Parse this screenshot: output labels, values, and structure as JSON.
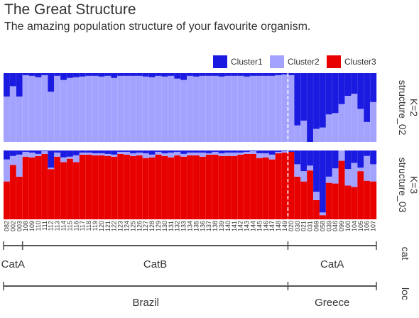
{
  "chart_data": {
    "type": "bar",
    "title": "The Great Structure",
    "subtitle": "The amazing population structure of your favourite organism.",
    "legend": {
      "placement": "top-right",
      "items": [
        {
          "name": "Cluster1",
          "color": "#1a1ae0"
        },
        {
          "name": "Cluster2",
          "color": "#a3a3ff"
        },
        {
          "name": "Cluster3",
          "color": "#e80000"
        }
      ]
    },
    "categories": [
      "082",
      "002",
      "003",
      "108",
      "109",
      "110",
      "111",
      "112",
      "113",
      "114",
      "115",
      "116",
      "117",
      "118",
      "119",
      "120",
      "121",
      "122",
      "123",
      "124",
      "125",
      "126",
      "127",
      "128",
      "129",
      "130",
      "131",
      "132",
      "133",
      "134",
      "135",
      "136",
      "137",
      "138",
      "139",
      "140",
      "141",
      "142",
      "143",
      "144",
      "145",
      "146",
      "147",
      "148",
      "149",
      "020",
      "030",
      "021",
      "031",
      "069",
      "058",
      "039",
      "046",
      "099",
      "100",
      "104",
      "105",
      "106",
      "107"
    ],
    "group_split_after": "149",
    "panels": [
      {
        "name": "structure_02",
        "k_label": "K=2",
        "series_order": [
          "Cluster2",
          "Cluster1"
        ],
        "values": {
          "Cluster1": [
            0.34,
            0.19,
            0.34,
            0.03,
            0.04,
            0.06,
            0.03,
            0.27,
            0.04,
            0.1,
            0.07,
            0.06,
            0.05,
            0.04,
            0.04,
            0.05,
            0.04,
            0.07,
            0.04,
            0.04,
            0.04,
            0.04,
            0.05,
            0.06,
            0.04,
            0.05,
            0.04,
            0.08,
            0.1,
            0.04,
            0.05,
            0.04,
            0.04,
            0.04,
            0.05,
            0.04,
            0.04,
            0.04,
            0.05,
            0.04,
            0.04,
            0.04,
            0.04,
            0.03,
            0.02,
            0.03,
            0.76,
            0.69,
            1.0,
            0.81,
            0.79,
            0.6,
            0.58,
            0.45,
            0.33,
            0.3,
            0.52,
            0.71,
            0.42
          ],
          "Cluster2": [
            0.66,
            0.81,
            0.66,
            0.97,
            0.96,
            0.94,
            0.97,
            0.73,
            0.96,
            0.9,
            0.93,
            0.94,
            0.95,
            0.96,
            0.96,
            0.95,
            0.96,
            0.93,
            0.96,
            0.96,
            0.96,
            0.96,
            0.95,
            0.94,
            0.96,
            0.95,
            0.96,
            0.92,
            0.9,
            0.96,
            0.95,
            0.96,
            0.96,
            0.96,
            0.95,
            0.96,
            0.96,
            0.96,
            0.95,
            0.96,
            0.96,
            0.96,
            0.96,
            0.97,
            0.98,
            0.97,
            0.24,
            0.31,
            0.0,
            0.19,
            0.21,
            0.4,
            0.42,
            0.55,
            0.67,
            0.7,
            0.48,
            0.29,
            0.58
          ]
        }
      },
      {
        "name": "structure_03",
        "k_label": "K=3",
        "series_order": [
          "Cluster3",
          "Cluster2",
          "Cluster1"
        ],
        "values": {
          "Cluster1": [
            0.13,
            0.08,
            0.06,
            0.02,
            0.03,
            0.05,
            0.01,
            0.25,
            0.03,
            0.1,
            0.09,
            0.07,
            0.03,
            0.03,
            0.04,
            0.04,
            0.05,
            0.06,
            0.02,
            0.02,
            0.04,
            0.03,
            0.04,
            0.06,
            0.02,
            0.04,
            0.03,
            0.02,
            0.05,
            0.03,
            0.03,
            0.03,
            0.04,
            0.02,
            0.04,
            0.03,
            0.03,
            0.03,
            0.02,
            0.01,
            0.04,
            0.04,
            0.06,
            0.02,
            0.01,
            0.02,
            0.2,
            0.3,
            0.22,
            0.6,
            0.9,
            0.38,
            0.26,
            0.0,
            0.27,
            0.18,
            0.25,
            0.08,
            0.2
          ],
          "Cluster2": [
            0.32,
            0.13,
            0.32,
            0.07,
            0.07,
            0.03,
            0.04,
            0.02,
            0.06,
            0.07,
            0.03,
            0.1,
            0.03,
            0.03,
            0.03,
            0.03,
            0.03,
            0.03,
            0.03,
            0.04,
            0.04,
            0.04,
            0.07,
            0.04,
            0.04,
            0.04,
            0.07,
            0.05,
            0.04,
            0.04,
            0.04,
            0.06,
            0.02,
            0.04,
            0.04,
            0.05,
            0.05,
            0.03,
            0.03,
            0.04,
            0.07,
            0.06,
            0.07,
            0.02,
            0.02,
            0.0,
            0.18,
            0.15,
            0.07,
            0.12,
            0.04,
            0.09,
            0.22,
            0.15,
            0.24,
            0.35,
            0.05,
            0.36,
            0.25
          ],
          "Cluster3": [
            0.55,
            0.79,
            0.62,
            0.91,
            0.9,
            0.92,
            0.95,
            0.73,
            0.91,
            0.83,
            0.88,
            0.83,
            0.94,
            0.94,
            0.93,
            0.93,
            0.92,
            0.91,
            0.95,
            0.94,
            0.92,
            0.93,
            0.89,
            0.9,
            0.94,
            0.92,
            0.9,
            0.93,
            0.91,
            0.93,
            0.93,
            0.91,
            0.94,
            0.94,
            0.92,
            0.92,
            0.92,
            0.94,
            0.95,
            0.95,
            0.89,
            0.9,
            0.87,
            0.96,
            0.97,
            0.98,
            0.62,
            0.55,
            0.71,
            0.28,
            0.06,
            0.53,
            0.52,
            0.85,
            0.49,
            0.47,
            0.7,
            0.56,
            0.55
          ]
        }
      }
    ],
    "annotation_tracks": [
      {
        "name": "cat",
        "groups": [
          {
            "label": "CatA",
            "from": "082",
            "to": "003"
          },
          {
            "label": "CatB",
            "from": "108",
            "to": "149"
          },
          {
            "label": "CatA",
            "from": "020",
            "to": "107"
          }
        ]
      },
      {
        "name": "loc",
        "groups": [
          {
            "label": "Brazil",
            "from": "082",
            "to": "149"
          },
          {
            "label": "Greece",
            "from": "020",
            "to": "107"
          }
        ]
      }
    ],
    "ylim": [
      0,
      1
    ]
  }
}
